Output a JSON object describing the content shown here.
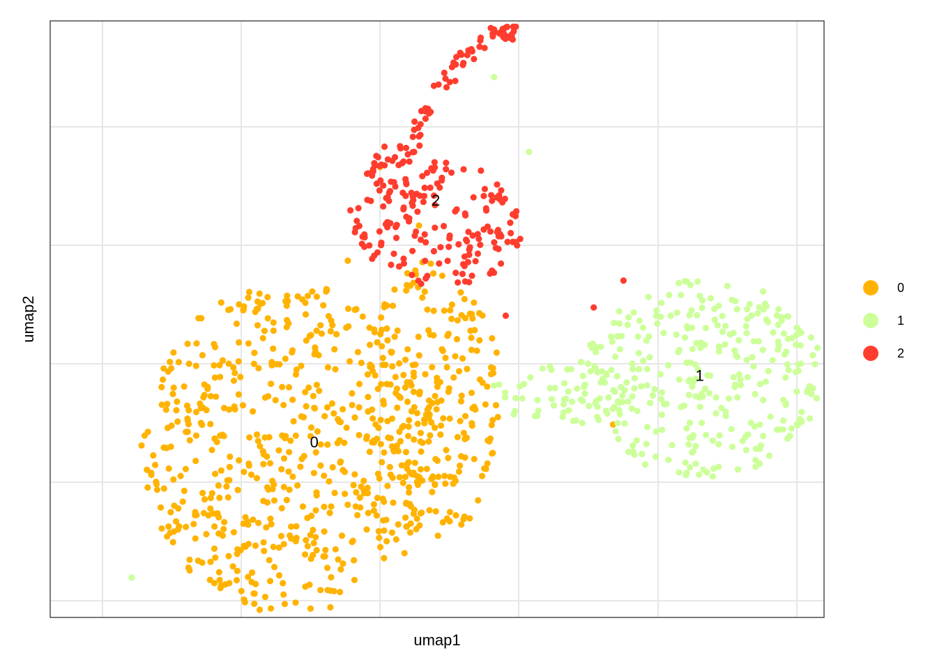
{
  "chart_data": {
    "type": "scatter",
    "xlabel": "umap1",
    "ylabel": "umap2",
    "x_tick_labels_shown": false,
    "y_tick_labels_shown": false,
    "grid": true,
    "legend_placement": "right",
    "legend": [
      {
        "label": "0",
        "color": "#FFB300"
      },
      {
        "label": "1",
        "color": "#CCFF99"
      },
      {
        "label": "2",
        "color": "#FF3D2E"
      }
    ],
    "cluster_labels": [
      {
        "label": "0",
        "x": 2.04,
        "y": 1.5
      },
      {
        "label": "1",
        "x": 5.02,
        "y": 2.07
      },
      {
        "label": "2",
        "x": 2.98,
        "y": 3.57
      }
    ],
    "clusters": [
      {
        "name": "0",
        "color": "#FFB300",
        "shape": "disc",
        "cx": 1.85,
        "cy": 1.45,
        "rx": 1.15,
        "ry": 1.42,
        "n": 560,
        "extra_region": {
          "cx": 2.95,
          "cy": 1.85,
          "rx": 0.55,
          "ry": 1.2,
          "n": 220
        },
        "outliers": [
          [
            2.3,
            3.05
          ],
          [
            1.83,
            2.75
          ],
          [
            4.35,
            1.65
          ],
          [
            2.55,
            3.85
          ],
          [
            2.85,
            3.35
          ]
        ]
      },
      {
        "name": "1",
        "color": "#CCFF99",
        "shape": "disc",
        "cx": 5.05,
        "cy": 2.05,
        "rx": 0.93,
        "ry": 0.85,
        "n": 310,
        "extra_region": {
          "cx": 3.95,
          "cy": 1.92,
          "rx": 0.55,
          "ry": 0.28,
          "n": 60
        },
        "outliers": [
          [
            0.63,
            0.34
          ],
          [
            3.43,
            4.62
          ],
          [
            3.7,
            3.98
          ]
        ]
      },
      {
        "name": "2",
        "color": "#FF3D2E",
        "shape": "arc",
        "cx": 3.0,
        "cy": 3.35,
        "rx": 0.65,
        "ry": 0.55,
        "n": 150,
        "extra_region": {
          "cx": 3.05,
          "cy": 4.35,
          "rx": 0.55,
          "ry": 0.6,
          "n": 90
        },
        "outliers": [
          [
            4.2,
            2.65
          ],
          [
            3.52,
            2.58
          ],
          [
            4.43,
            2.88
          ],
          [
            2.32,
            3.48
          ],
          [
            2.43,
            3.25
          ]
        ]
      }
    ]
  }
}
